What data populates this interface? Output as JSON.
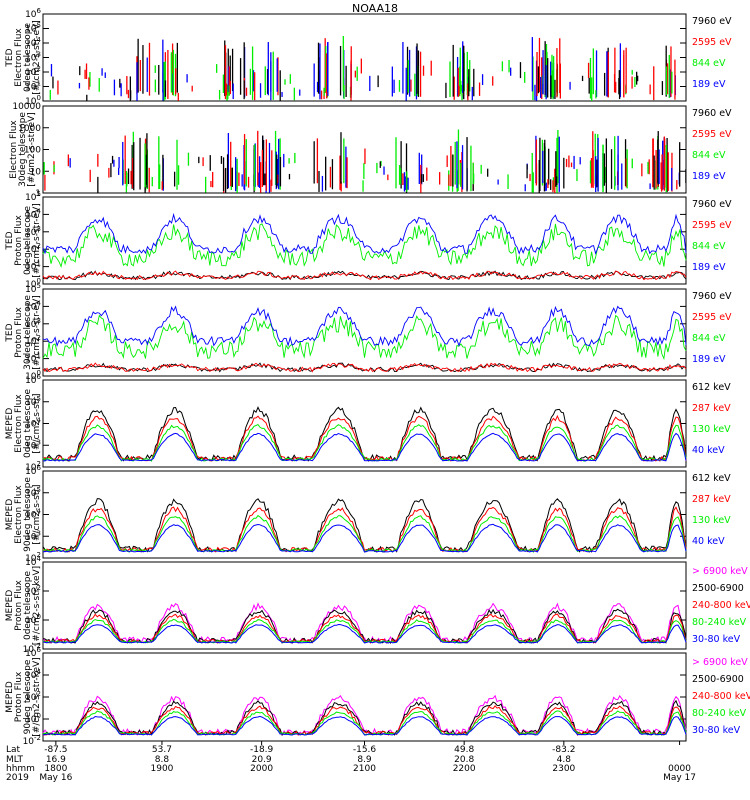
{
  "figure": {
    "title": "NOAA18",
    "colors": {
      "black": "#000000",
      "red": "#ff0000",
      "green": "#00ee00",
      "blue": "#0000ff",
      "magenta": "#ff00ff"
    }
  },
  "chart_data": [
    {
      "type": "bar",
      "panel": "TED Electron Flux 0deg telescope",
      "ylabel": [
        "TED",
        "Electron Flux",
        "0deg telescope",
        "[#/cm2-s-str-eV]"
      ],
      "yscale": "log",
      "ylim": [
        1,
        1000000
      ],
      "yticks": [
        "10^0",
        "10^1",
        "10^2",
        "10^3",
        "10^4",
        "10^5",
        "10^6"
      ],
      "series": [
        {
          "name": "7960 eV",
          "color": "#000000"
        },
        {
          "name": "2595 eV",
          "color": "#ff0000"
        },
        {
          "name": "844 eV",
          "color": "#00ee00"
        },
        {
          "name": "189 eV",
          "color": "#0000ff"
        }
      ]
    },
    {
      "type": "bar",
      "panel": "TED Electron Flux 30deg telescope",
      "ylabel": [
        "Electron Flux",
        "30deg telescope",
        "[#/cm2-s-str-eV]"
      ],
      "yscale": "log",
      "ylim": [
        1,
        10000
      ],
      "yticks": [
        "1",
        "10",
        "100",
        "1000",
        "10000"
      ],
      "series": [
        {
          "name": "7960 eV",
          "color": "#000000"
        },
        {
          "name": "2595 eV",
          "color": "#ff0000"
        },
        {
          "name": "844 eV",
          "color": "#00ee00"
        },
        {
          "name": "189 eV",
          "color": "#0000ff"
        }
      ]
    },
    {
      "type": "line",
      "panel": "TED Proton Flux 0deg telescope",
      "ylabel": [
        "TED",
        "Proton Flux",
        "0deg telescope",
        "[#/cm2-s-str-eV]"
      ],
      "yscale": "log",
      "ylim": [
        1,
        100000
      ],
      "yticks": [
        "10^0",
        "10^1",
        "10^2",
        "10^3",
        "10^4",
        "10^5"
      ],
      "series": [
        {
          "name": "7960 eV",
          "color": "#000000"
        },
        {
          "name": "2595 eV",
          "color": "#ff0000"
        },
        {
          "name": "844 eV",
          "color": "#00ee00"
        },
        {
          "name": "189 eV",
          "color": "#0000ff"
        }
      ]
    },
    {
      "type": "line",
      "panel": "TED Proton Flux 30deg telescope",
      "ylabel": [
        "TED",
        "Proton Flux",
        "30deg telescope",
        "[#/cm2-s-str-eV]"
      ],
      "yscale": "log",
      "ylim": [
        1,
        100000
      ],
      "yticks": [
        "10^0",
        "10^1",
        "10^2",
        "10^3",
        "10^4",
        "10^5"
      ],
      "series": [
        {
          "name": "7960 eV",
          "color": "#000000"
        },
        {
          "name": "2595 eV",
          "color": "#ff0000"
        },
        {
          "name": "844 eV",
          "color": "#00ee00"
        },
        {
          "name": "189 eV",
          "color": "#0000ff"
        }
      ]
    },
    {
      "type": "line",
      "panel": "MEPED Electron Flux 0deg telescope",
      "ylabel": [
        "MEPED",
        "Electron Flux",
        "0deg telescope",
        "[#/cm2-s-str]"
      ],
      "yscale": "log",
      "ylim": [
        100,
        1000000
      ],
      "yticks": [
        "10^2",
        "10^3",
        "10^4",
        "10^5",
        "10^6"
      ],
      "series": [
        {
          "name": "612 keV",
          "color": "#000000"
        },
        {
          "name": "287 keV",
          "color": "#ff0000"
        },
        {
          "name": "130 keV",
          "color": "#00ee00"
        },
        {
          "name": "40 keV",
          "color": "#0000ff"
        }
      ]
    },
    {
      "type": "line",
      "panel": "MEPED Electron Flux 90deg telescope",
      "ylabel": [
        "MEPED",
        "Electron Flux",
        "90deg telescope",
        "[#/cm2-s-str]"
      ],
      "yscale": "log",
      "ylim": [
        100,
        1000000
      ],
      "yticks": [
        "10^2",
        "10^3",
        "10^4",
        "10^5",
        "10^6"
      ],
      "series": [
        {
          "name": "612 keV",
          "color": "#000000"
        },
        {
          "name": "287 keV",
          "color": "#ff0000"
        },
        {
          "name": "130 keV",
          "color": "#00ee00"
        },
        {
          "name": "40 keV",
          "color": "#0000ff"
        }
      ]
    },
    {
      "type": "line",
      "panel": "MEPED Proton Flux 0deg telescope",
      "ylabel": [
        "MEPED",
        "Proton Flux",
        "0deg telescope",
        "[#/cm2-s-str-keV]"
      ],
      "yscale": "log",
      "ylim": [
        0.01,
        100000
      ],
      "yticks": [
        "10^-2",
        "10^0",
        "10^2",
        "10^4"
      ],
      "series": [
        {
          "name": "> 6900 keV",
          "color": "#ff00ff"
        },
        {
          "name": "2500-6900",
          "color": "#000000"
        },
        {
          "name": "240-800 keV",
          "color": "#ff0000"
        },
        {
          "name": "80-240 keV",
          "color": "#00ee00"
        },
        {
          "name": "30-80 keV",
          "color": "#0000ff"
        }
      ]
    },
    {
      "type": "line",
      "panel": "MEPED Proton Flux 90deg telescope",
      "ylabel": [
        "MEPED",
        "Proton Flux",
        "90deg telescope",
        "[#/cm2-s-str-keV]"
      ],
      "yscale": "log",
      "ylim": [
        0.01,
        1000000
      ],
      "yticks": [
        "10^-2",
        "10^0",
        "10^2",
        "10^4",
        "10^6"
      ],
      "series": [
        {
          "name": "> 6900 keV",
          "color": "#ff00ff"
        },
        {
          "name": "2500-6900",
          "color": "#000000"
        },
        {
          "name": "240-800 keV",
          "color": "#ff0000"
        },
        {
          "name": "80-240 keV",
          "color": "#00ee00"
        },
        {
          "name": "30-80 keV",
          "color": "#0000ff"
        }
      ]
    }
  ],
  "x_axis": {
    "row_labels": [
      "Lat",
      "MLT",
      "hhmm",
      "2019"
    ],
    "columns": [
      {
        "lat": "-87.5",
        "mlt": "16.9",
        "hhmm": "1800",
        "date": "May 16"
      },
      {
        "lat": "53.7",
        "mlt": "8.8",
        "hhmm": "1900",
        "date": ""
      },
      {
        "lat": "-18.9",
        "mlt": "20.9",
        "hhmm": "2000",
        "date": ""
      },
      {
        "lat": "-15.6",
        "mlt": "8.9",
        "hhmm": "2100",
        "date": ""
      },
      {
        "lat": "49.8",
        "mlt": "20.8",
        "hhmm": "2200",
        "date": ""
      },
      {
        "lat": "-83.2",
        "mlt": "4.8",
        "hhmm": "2300",
        "date": ""
      },
      {
        "lat": "",
        "mlt": "",
        "hhmm": "0000",
        "date": "May 17"
      }
    ]
  }
}
